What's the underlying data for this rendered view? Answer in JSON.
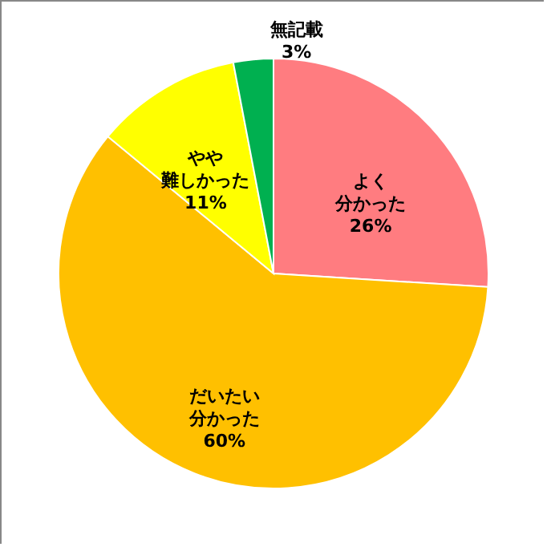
{
  "chart_data": {
    "type": "pie",
    "categories": [
      "よく分かった",
      "だいたい分かった",
      "やや難しかった",
      "無記載"
    ],
    "values": [
      26,
      60,
      11,
      3
    ],
    "colors": [
      "#ff7c80",
      "#ffc000",
      "#ffff00",
      "#00b050"
    ],
    "value_labels": [
      "26%",
      "60%",
      "11%",
      "3%"
    ]
  }
}
